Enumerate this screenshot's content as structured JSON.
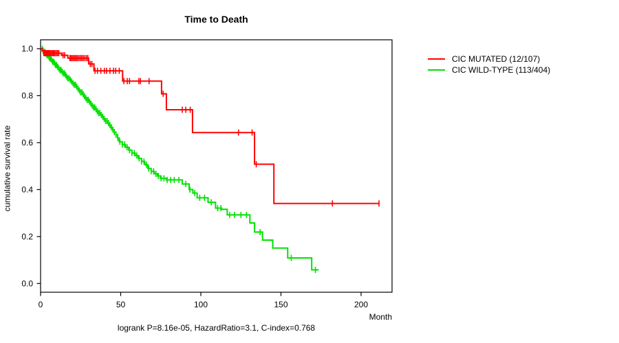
{
  "chart_data": {
    "type": "line",
    "subtype": "kaplan-meier-step-curves",
    "title": "Time to Death",
    "xlabel": "Month",
    "ylabel": "cumulative survival rate",
    "footnote": "logrank P=8.16e-05, HazardRatio=3.1, C-index=0.768",
    "xlim": [
      0,
      219
    ],
    "ylim": [
      0,
      1.0
    ],
    "xticks": [
      0,
      50,
      100,
      150,
      200
    ],
    "xtick_labels": [
      "0",
      "50",
      "100",
      "150",
      "200"
    ],
    "yticks": [
      0.0,
      0.2,
      0.4,
      0.6,
      0.8,
      1.0
    ],
    "ytick_labels": [
      "0.0",
      "0.2",
      "0.4",
      "0.6",
      "0.8",
      "1.0"
    ],
    "grid": false,
    "legend_position": "right-outside",
    "series": [
      {
        "name": "CIC MUTATED (12/107)",
        "color": "#FF0000",
        "steps": [
          [
            0,
            1.0
          ],
          [
            1.0,
            0.991
          ],
          [
            1.8,
            0.981
          ],
          [
            13.0,
            0.972
          ],
          [
            17.0,
            0.96
          ],
          [
            30.0,
            0.935
          ],
          [
            33.3,
            0.906
          ],
          [
            51.2,
            0.862
          ],
          [
            75.5,
            0.808
          ],
          [
            78.5,
            0.74
          ],
          [
            94.8,
            0.643
          ],
          [
            133.5,
            0.508
          ],
          [
            145.6,
            0.341
          ]
        ],
        "end_time": 211.5,
        "censor_times": [
          2.0,
          2.6,
          3.2,
          3.8,
          4.4,
          5.0,
          5.6,
          6.2,
          6.9,
          7.6,
          8.3,
          9.0,
          9.8,
          10.6,
          11.4,
          14.0,
          15.0,
          18.3,
          19.0,
          19.8,
          20.6,
          21.4,
          22.2,
          23.0,
          23.9,
          24.8,
          25.7,
          26.6,
          27.6,
          28.6,
          29.5,
          31.0,
          32.0,
          34.0,
          35.5,
          37.6,
          39.8,
          41.2,
          43.3,
          45.5,
          46.9,
          49.1,
          52.0,
          54.1,
          55.5,
          61.3,
          62.3,
          67.7,
          76.5,
          88.4,
          90.6,
          93.4,
          123.5,
          132.0,
          134.6,
          182.1,
          211.2
        ]
      },
      {
        "name": "CIC WILD-TYPE (113/404)",
        "color": "#00E000",
        "steps": [
          [
            0,
            1.0
          ],
          [
            1.2,
            0.993
          ],
          [
            2.2,
            0.986
          ],
          [
            3.1,
            0.979
          ],
          [
            4.0,
            0.972
          ],
          [
            4.9,
            0.965
          ],
          [
            5.8,
            0.958
          ],
          [
            6.7,
            0.951
          ],
          [
            7.6,
            0.944
          ],
          [
            8.5,
            0.937
          ],
          [
            9.4,
            0.93
          ],
          [
            10.3,
            0.923
          ],
          [
            11.2,
            0.916
          ],
          [
            12.1,
            0.909
          ],
          [
            13.0,
            0.902
          ],
          [
            14.0,
            0.895
          ],
          [
            15.0,
            0.888
          ],
          [
            16.0,
            0.881
          ],
          [
            17.0,
            0.874
          ],
          [
            18.0,
            0.867
          ],
          [
            19.0,
            0.86
          ],
          [
            20.0,
            0.853
          ],
          [
            21.0,
            0.846
          ],
          [
            22.0,
            0.838
          ],
          [
            23.0,
            0.83
          ],
          [
            24.0,
            0.822
          ],
          [
            25.0,
            0.814
          ],
          [
            26.0,
            0.806
          ],
          [
            27.0,
            0.798
          ],
          [
            28.0,
            0.79
          ],
          [
            29.0,
            0.782
          ],
          [
            30.0,
            0.774
          ],
          [
            31.0,
            0.766
          ],
          [
            32.0,
            0.758
          ],
          [
            33.0,
            0.75
          ],
          [
            34.0,
            0.742
          ],
          [
            35.0,
            0.734
          ],
          [
            36.1,
            0.726
          ],
          [
            37.2,
            0.718
          ],
          [
            38.3,
            0.71
          ],
          [
            39.4,
            0.701
          ],
          [
            40.5,
            0.692
          ],
          [
            41.6,
            0.683
          ],
          [
            42.7,
            0.674
          ],
          [
            43.8,
            0.665
          ],
          [
            45.0,
            0.655
          ],
          [
            46.0,
            0.645
          ],
          [
            47.0,
            0.634
          ],
          [
            48.0,
            0.62
          ],
          [
            49.0,
            0.604
          ],
          [
            51.0,
            0.592
          ],
          [
            53.0,
            0.58
          ],
          [
            55.0,
            0.568
          ],
          [
            57.0,
            0.556
          ],
          [
            59.0,
            0.545
          ],
          [
            61.0,
            0.533
          ],
          [
            63.0,
            0.52
          ],
          [
            65.0,
            0.506
          ],
          [
            66.9,
            0.49
          ],
          [
            69.0,
            0.478
          ],
          [
            71.0,
            0.467
          ],
          [
            73.0,
            0.458
          ],
          [
            74.8,
            0.448
          ],
          [
            78.4,
            0.441
          ],
          [
            88.4,
            0.424
          ],
          [
            92.7,
            0.4
          ],
          [
            95.0,
            0.385
          ],
          [
            97.7,
            0.365
          ],
          [
            104.5,
            0.346
          ],
          [
            109.2,
            0.321
          ],
          [
            113.0,
            0.316
          ],
          [
            116.5,
            0.292
          ],
          [
            130.6,
            0.258
          ],
          [
            133.5,
            0.219
          ],
          [
            138.5,
            0.185
          ],
          [
            144.9,
            0.151
          ],
          [
            154.2,
            0.109
          ],
          [
            169.2,
            0.058
          ]
        ],
        "end_time": 173.5,
        "censor_times": [
          1.0,
          1.6,
          2.2,
          2.8,
          3.4,
          4.0,
          4.6,
          5.2,
          5.8,
          6.4,
          7.0,
          7.6,
          8.2,
          8.8,
          9.4,
          10.0,
          10.7,
          11.4,
          12.1,
          12.8,
          13.5,
          14.2,
          14.9,
          15.6,
          16.3,
          17.0,
          17.8,
          18.6,
          19.4,
          20.2,
          21.0,
          21.8,
          22.6,
          23.4,
          24.2,
          25.0,
          25.8,
          26.6,
          27.4,
          28.2,
          29.0,
          29.8,
          30.6,
          31.4,
          32.2,
          33.0,
          33.8,
          34.6,
          35.4,
          36.2,
          37.0,
          37.9,
          38.8,
          39.7,
          40.6,
          41.5,
          42.4,
          43.3,
          44.2,
          45.1,
          46.0,
          47.0,
          48.2,
          49.5,
          51.0,
          52.5,
          54.0,
          55.5,
          57.0,
          58.5,
          60.0,
          61.5,
          63.0,
          64.5,
          66.0,
          67.5,
          69.0,
          70.5,
          72.0,
          73.5,
          75.2,
          77.0,
          79.0,
          81.2,
          83.4,
          86.3,
          90.6,
          93.2,
          96.2,
          99.3,
          102.3,
          106.5,
          110.5,
          112.5,
          118.0,
          121.0,
          125.0,
          128.5,
          137.0,
          156.4,
          171.5
        ]
      }
    ]
  }
}
